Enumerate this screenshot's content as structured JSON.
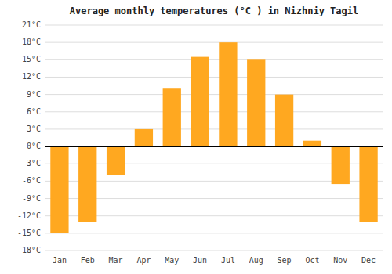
{
  "chart_data": {
    "type": "bar",
    "title": "Average monthly temperatures (°C ) in Nizhniy Tagil",
    "categories": [
      "Jan",
      "Feb",
      "Mar",
      "Apr",
      "May",
      "Jun",
      "Jul",
      "Aug",
      "Sep",
      "Oct",
      "Nov",
      "Dec"
    ],
    "values": [
      -15,
      -13,
      -5,
      3,
      10,
      15.5,
      18,
      15,
      9,
      1,
      -6.5,
      -13
    ],
    "color": "#FFA820",
    "ylim": [
      -18,
      21
    ],
    "yticks": [
      {
        "value": -18,
        "label": "-18°C"
      },
      {
        "value": -15,
        "label": "-15°C"
      },
      {
        "value": -12,
        "label": "-12°C"
      },
      {
        "value": -9,
        "label": "-9°C"
      },
      {
        "value": -6,
        "label": "-6°C"
      },
      {
        "value": -3,
        "label": "-3°C"
      },
      {
        "value": 0,
        "label": "0°C"
      },
      {
        "value": 3,
        "label": "3°C"
      },
      {
        "value": 6,
        "label": "6°C"
      },
      {
        "value": 9,
        "label": "9°C"
      },
      {
        "value": 12,
        "label": "12°C"
      },
      {
        "value": 15,
        "label": "15°C"
      },
      {
        "value": 18,
        "label": "18°C"
      },
      {
        "value": 21,
        "label": "21°C"
      }
    ],
    "grid": true
  }
}
